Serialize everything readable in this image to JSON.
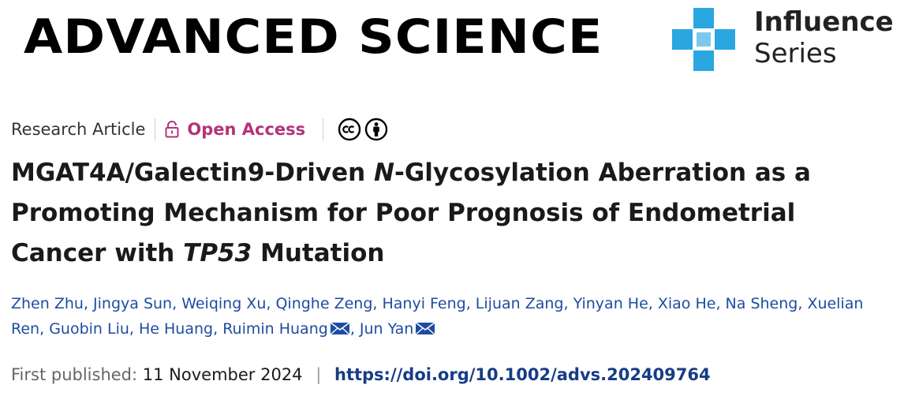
{
  "header": {
    "journal_title": "ADVANCED SCIENCE",
    "series_line1": "Influence",
    "series_line2": "Series",
    "series_logo_color": "#2aa6e0"
  },
  "meta": {
    "article_type": "Research Article",
    "access_label": "Open Access",
    "access_color": "#b4337a",
    "license_icons": [
      "creative-commons-icon",
      "attribution-icon"
    ]
  },
  "title": {
    "part1": "MGAT4A/Galectin9-Driven ",
    "part2_italic": "N",
    "part3": "-Glycosylation Aberration as a Promoting Mechanism for Poor Prognosis of Endometrial Cancer with ",
    "part4_italic": "TP53",
    "part5": " Mutation"
  },
  "authors": [
    {
      "name": "Zhen Zhu",
      "corresponding": false
    },
    {
      "name": "Jingya Sun",
      "corresponding": false
    },
    {
      "name": "Weiqing Xu",
      "corresponding": false
    },
    {
      "name": "Qinghe Zeng",
      "corresponding": false
    },
    {
      "name": "Hanyi Feng",
      "corresponding": false
    },
    {
      "name": "Lijuan Zang",
      "corresponding": false
    },
    {
      "name": "Yinyan He",
      "corresponding": false
    },
    {
      "name": "Xiao He",
      "corresponding": false
    },
    {
      "name": "Na Sheng",
      "corresponding": false
    },
    {
      "name": "Xuelian Ren",
      "corresponding": false
    },
    {
      "name": "Guobin Liu",
      "corresponding": false
    },
    {
      "name": "He Huang",
      "corresponding": false
    },
    {
      "name": "Ruimin Huang",
      "corresponding": true
    },
    {
      "name": "Jun Yan",
      "corresponding": true
    }
  ],
  "author_separator": ", ",
  "publication": {
    "label": "First published:",
    "date": "11 November 2024",
    "separator": "|",
    "doi": "https://doi.org/10.1002/advs.202409764"
  }
}
